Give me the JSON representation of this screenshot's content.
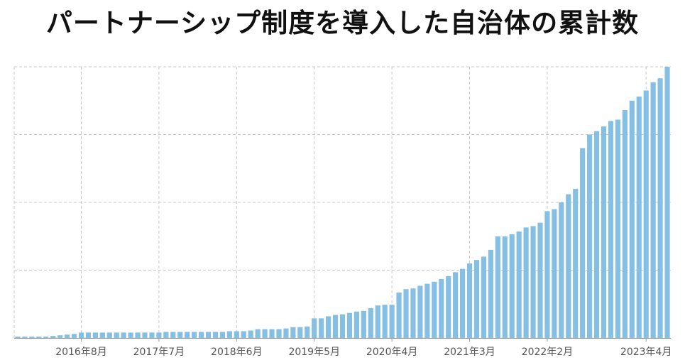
{
  "chart_data": {
    "type": "bar",
    "title": "パートナーシップ制度を導入した自治体の累計数",
    "xlabel": "",
    "ylabel": "",
    "grid": true,
    "legend": "none",
    "bar_color": "#85bfe3",
    "tick_labels": [
      "2016年8月",
      "2017年7月",
      "2018年6月",
      "2019年5月",
      "2020年4月",
      "2021年3月",
      "2022年2月",
      "2023年4月"
    ],
    "tick_indices": [
      9,
      20,
      31,
      42,
      53,
      64,
      75,
      89
    ],
    "ylim": [
      0,
      400
    ],
    "values": [
      2,
      2,
      2,
      2,
      2,
      3,
      4,
      5,
      6,
      8,
      8,
      8,
      8,
      8,
      8,
      8,
      8,
      8,
      8,
      8,
      8,
      9,
      9,
      9,
      9,
      9,
      9,
      9,
      9,
      9,
      10,
      10,
      10,
      11,
      13,
      13,
      13,
      13,
      14,
      16,
      16,
      17,
      29,
      29,
      32,
      34,
      35,
      37,
      39,
      40,
      44,
      48,
      49,
      49,
      67,
      72,
      73,
      77,
      80,
      83,
      87,
      91,
      97,
      102,
      110,
      115,
      120,
      130,
      150,
      150,
      153,
      157,
      163,
      165,
      170,
      187,
      190,
      200,
      212,
      220,
      280,
      300,
      305,
      312,
      320,
      322,
      336,
      350,
      356,
      365,
      377,
      383,
      400
    ]
  }
}
